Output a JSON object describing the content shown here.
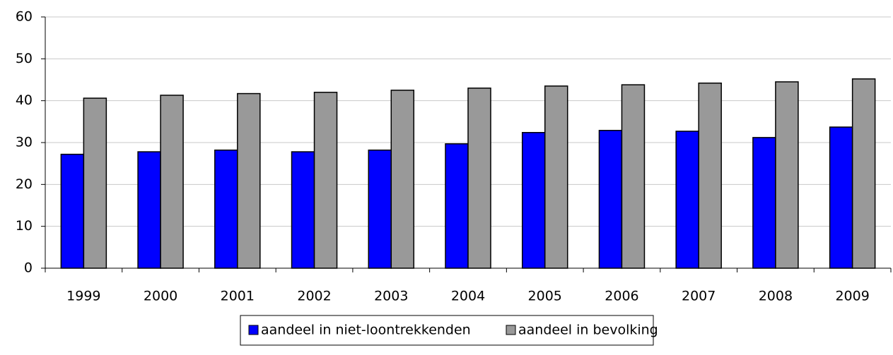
{
  "chart_data": {
    "type": "bar",
    "categories": [
      "1999",
      "2000",
      "2001",
      "2002",
      "2003",
      "2004",
      "2005",
      "2006",
      "2007",
      "2008",
      "2009"
    ],
    "series": [
      {
        "name": "aandeel in niet-loontrekkenden",
        "color": "#0000ff",
        "values": [
          27.2,
          27.8,
          28.2,
          27.8,
          28.2,
          29.7,
          32.4,
          32.9,
          32.7,
          31.2,
          33.7
        ]
      },
      {
        "name": "aandeel in bevolking",
        "color": "#999999",
        "values": [
          40.6,
          41.3,
          41.7,
          42.0,
          42.5,
          43.0,
          43.5,
          43.8,
          44.2,
          44.5,
          45.2
        ]
      }
    ],
    "ylim": [
      0,
      60
    ],
    "yticks": [
      0,
      10,
      20,
      30,
      40,
      50,
      60
    ],
    "grid": true,
    "legend": "bottom"
  }
}
